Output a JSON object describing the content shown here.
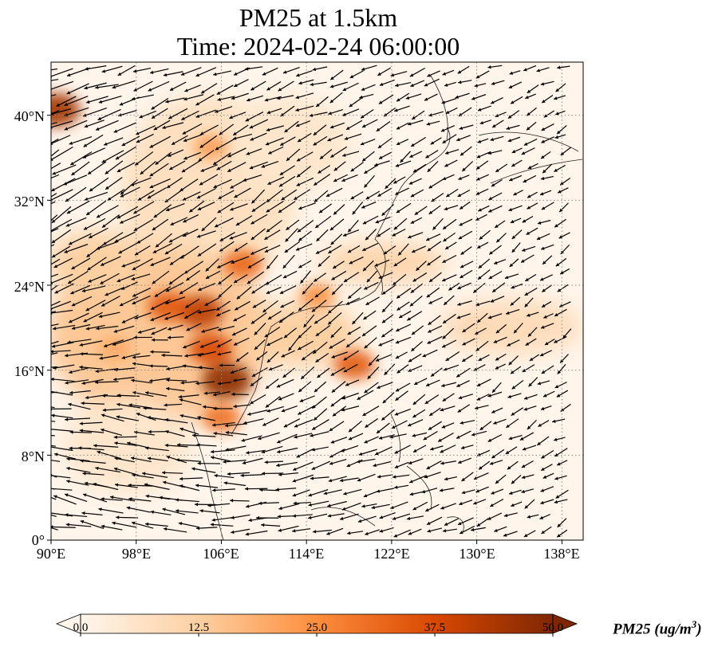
{
  "title": {
    "line1": "PM25 at 1.5km",
    "line2": "Time: 2024-02-24 06:00:00"
  },
  "map": {
    "extent": {
      "lon": [
        90,
        140
      ],
      "lat": [
        0,
        45
      ]
    },
    "background_color": "#fff5eb",
    "gridline_style": "dotted gray",
    "lat_ticks": [
      "0°",
      "8°N",
      "16°N",
      "24°N",
      "32°N",
      "40°N"
    ],
    "lat_values": [
      0,
      8,
      16,
      24,
      32,
      40
    ],
    "lon_ticks": [
      "90°E",
      "98°E",
      "106°E",
      "114°E",
      "122°E",
      "130°E",
      "138°E"
    ],
    "lon_values": [
      90,
      98,
      106,
      114,
      122,
      130,
      138
    ],
    "field": "PM25",
    "overlay": "wind vectors (black arrows)",
    "pm25_hotspots": [
      {
        "lon": 90.5,
        "lat": 40.5,
        "value": 45
      },
      {
        "lon": 104,
        "lat": 21.5,
        "value": 42
      },
      {
        "lon": 106.5,
        "lat": 15,
        "value": 48
      },
      {
        "lon": 105,
        "lat": 18,
        "value": 38
      },
      {
        "lon": 101,
        "lat": 22,
        "value": 35
      },
      {
        "lon": 108,
        "lat": 26,
        "value": 32
      },
      {
        "lon": 118.5,
        "lat": 16.5,
        "value": 34
      },
      {
        "lon": 106,
        "lat": 11.5,
        "value": 30
      },
      {
        "lon": 105,
        "lat": 37,
        "value": 22
      },
      {
        "lon": 115,
        "lat": 23,
        "value": 24
      },
      {
        "lon": 96,
        "lat": 18,
        "value": 20
      },
      {
        "lon": 130,
        "lat": 20,
        "value": 10
      }
    ]
  },
  "colorbar": {
    "label": "PM25 (ug/m",
    "label_exponent": "3",
    "label_suffix": ")",
    "ticks": [
      "0.0",
      "12.5",
      "25.0",
      "37.5",
      "50.0"
    ],
    "tick_values": [
      0,
      12.5,
      25,
      37.5,
      50
    ],
    "range": [
      0,
      50
    ],
    "colormap_stops": [
      "#fff5eb",
      "#fdd0a2",
      "#fd8d3c",
      "#d94801",
      "#7f2704"
    ],
    "extend": "both"
  }
}
